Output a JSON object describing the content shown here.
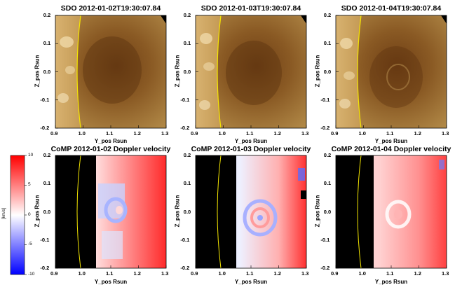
{
  "figure": {
    "top_row": {
      "panels": [
        {
          "title": "SDO 2012-01-02T19:30:07.84",
          "ylabel": "Z_pos Rsun",
          "xlabel": "Y_pos Rsun"
        },
        {
          "title": "SDO 2012-01-03T19:30:07.84",
          "ylabel": "Z_pos Rsun",
          "xlabel": "Y_pos Rsun"
        },
        {
          "title": "SDO 2012-01-04T19:30:07.84",
          "ylabel": "Z_pos Rsun",
          "xlabel": "Y_pos Rsun"
        }
      ]
    },
    "bottom_row": {
      "panels": [
        {
          "title": "CoMP 2012-01-02 Doppler velocity",
          "ylabel": "Z_pos Rsun",
          "xlabel": "Y_pos Rsun"
        },
        {
          "title": "CoMP 2012-01-03 Doppler velocity",
          "ylabel": "Z_pos Rsun",
          "xlabel": "Y_pos Rsun"
        },
        {
          "title": "CoMP 2012-01-04 Doppler velocity",
          "ylabel": "Z_pos Rsun",
          "xlabel": "Y_pos Rsun"
        }
      ]
    },
    "x_ticks": [
      "0.9",
      "1.0",
      "1.1",
      "1.2",
      "1.3"
    ],
    "y_ticks_top": [
      "0.2",
      "0.1",
      "0.0",
      "-0.1",
      "-0.2"
    ],
    "y_ticks_bottom": [
      "0.2",
      "0.1",
      "0.0",
      "-0.1",
      "-0.2"
    ],
    "colorbar": {
      "label": "[km/s]",
      "ticks": [
        "10",
        "5",
        "0",
        "-5",
        "-10"
      ],
      "colors": {
        "max": "#ff0000",
        "zero": "#ffffff",
        "min": "#0000ff"
      }
    },
    "limb_color": "#e8d800"
  },
  "chart_data": [
    {
      "type": "heatmap",
      "title": "SDO 2012-01-02T19:30:07.84",
      "xlabel": "Y_pos Rsun",
      "ylabel": "Z_pos Rsun",
      "xlim": [
        0.9,
        1.3
      ],
      "ylim": [
        -0.2,
        0.2
      ]
    },
    {
      "type": "heatmap",
      "title": "SDO 2012-01-03T19:30:07.84",
      "xlabel": "Y_pos Rsun",
      "ylabel": "Z_pos Rsun",
      "xlim": [
        0.9,
        1.3
      ],
      "ylim": [
        -0.2,
        0.2
      ]
    },
    {
      "type": "heatmap",
      "title": "SDO 2012-01-04T19:30:07.84",
      "xlabel": "Y_pos Rsun",
      "ylabel": "Z_pos Rsun",
      "xlim": [
        0.9,
        1.3
      ],
      "ylim": [
        -0.2,
        0.2
      ]
    },
    {
      "type": "heatmap",
      "title": "CoMP 2012-01-02 Doppler velocity",
      "xlabel": "Y_pos Rsun",
      "ylabel": "Z_pos Rsun",
      "xlim": [
        0.9,
        1.3
      ],
      "ylim": [
        -0.2,
        0.2
      ],
      "colorbar_range": [
        -10,
        10
      ],
      "colorbar_unit": "[km/s]"
    },
    {
      "type": "heatmap",
      "title": "CoMP 2012-01-03 Doppler velocity",
      "xlabel": "Y_pos Rsun",
      "ylabel": "Z_pos Rsun",
      "xlim": [
        0.9,
        1.3
      ],
      "ylim": [
        -0.2,
        0.2
      ],
      "colorbar_range": [
        -10,
        10
      ],
      "colorbar_unit": "[km/s]"
    },
    {
      "type": "heatmap",
      "title": "CoMP 2012-01-04 Doppler velocity",
      "xlabel": "Y_pos Rsun",
      "ylabel": "Z_pos Rsun",
      "xlim": [
        0.9,
        1.3
      ],
      "ylim": [
        -0.2,
        0.2
      ],
      "colorbar_range": [
        -10,
        10
      ],
      "colorbar_unit": "[km/s]"
    }
  ]
}
